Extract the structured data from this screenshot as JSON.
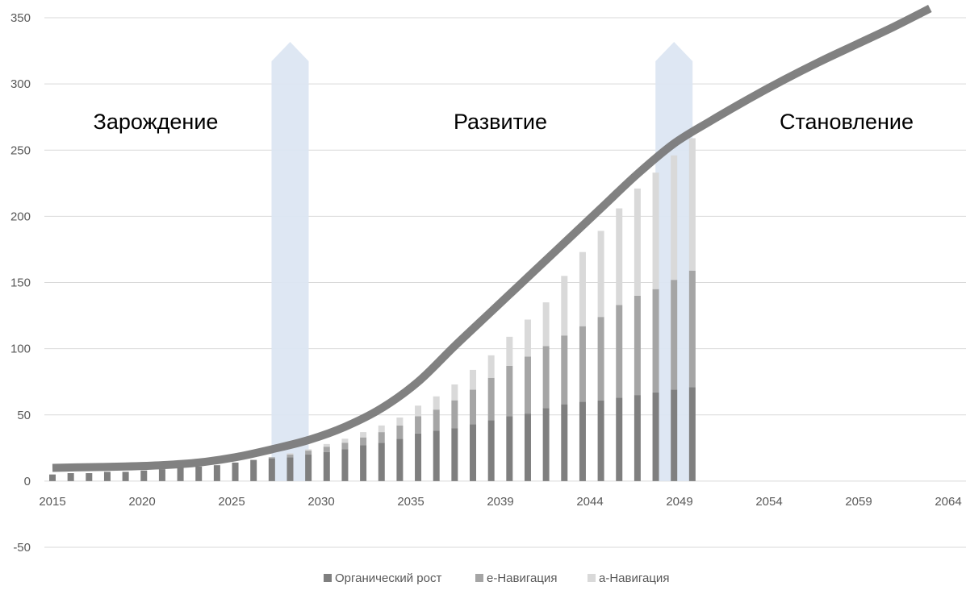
{
  "chart_data": {
    "type": "bar",
    "stacked": true,
    "x_tick_labels": [
      "2015",
      "2020",
      "2025",
      "2030",
      "2035",
      "2039",
      "2044",
      "2049",
      "2054",
      "2059",
      "2064"
    ],
    "y_ticks": [
      350,
      300,
      250,
      200,
      150,
      100,
      50,
      0,
      -50
    ],
    "ylim": [
      -50,
      350
    ],
    "xlim": [
      2015,
      2064
    ],
    "grid": true,
    "legend_position": "bottom",
    "phase_labels": [
      "Зарождение",
      "Развитие",
      "Становление"
    ],
    "series": [
      {
        "name": "Органический рост",
        "color": "#7f7f7f",
        "years": [
          2015,
          2016,
          2017,
          2018,
          2019,
          2020,
          2021,
          2022,
          2023,
          2024,
          2025,
          2026,
          2027,
          2028,
          2029,
          2030,
          2031,
          2032,
          2033,
          2034,
          2035,
          2036,
          2037,
          2038,
          2039,
          2040,
          2041,
          2042,
          2043,
          2044,
          2045,
          2046,
          2047,
          2048,
          2049,
          2050
        ],
        "values": [
          5,
          6,
          6,
          7,
          7,
          8,
          9,
          10,
          11,
          12,
          14,
          16,
          17,
          18,
          20,
          22,
          24,
          27,
          29,
          32,
          36,
          38,
          40,
          43,
          46,
          49,
          51,
          55,
          58,
          60,
          61,
          63,
          65,
          67,
          69,
          71
        ]
      },
      {
        "name": "e-Навигация",
        "color": "#a5a5a5",
        "years": [
          2015,
          2016,
          2017,
          2018,
          2019,
          2020,
          2021,
          2022,
          2023,
          2024,
          2025,
          2026,
          2027,
          2028,
          2029,
          2030,
          2031,
          2032,
          2033,
          2034,
          2035,
          2036,
          2037,
          2038,
          2039,
          2040,
          2041,
          2042,
          2043,
          2044,
          2045,
          2046,
          2047,
          2048,
          2049,
          2050
        ],
        "values": [
          0,
          0,
          0,
          0,
          0,
          0,
          0,
          0,
          0,
          0,
          0,
          0,
          1,
          2,
          3,
          4,
          5,
          6,
          8,
          10,
          13,
          16,
          21,
          26,
          32,
          38,
          43,
          47,
          52,
          57,
          63,
          70,
          75,
          78,
          83,
          88
        ]
      },
      {
        "name": "a-Навигация",
        "color": "#d9d9d9",
        "years": [
          2015,
          2016,
          2017,
          2018,
          2019,
          2020,
          2021,
          2022,
          2023,
          2024,
          2025,
          2026,
          2027,
          2028,
          2029,
          2030,
          2031,
          2032,
          2033,
          2034,
          2035,
          2036,
          2037,
          2038,
          2039,
          2040,
          2041,
          2042,
          2043,
          2044,
          2045,
          2046,
          2047,
          2048,
          2049,
          2050
        ],
        "values": [
          0,
          0,
          0,
          0,
          0,
          0,
          0,
          0,
          0,
          0,
          0,
          0,
          0,
          1,
          1,
          2,
          3,
          4,
          5,
          6,
          8,
          10,
          12,
          15,
          17,
          22,
          28,
          33,
          45,
          56,
          65,
          73,
          81,
          88,
          94,
          100
        ]
      }
    ],
    "trend_curve": {
      "color": "#7a7a7a",
      "x": [
        2015,
        2017,
        2019,
        2021,
        2023,
        2025,
        2027,
        2029,
        2031,
        2033,
        2035,
        2037,
        2039,
        2041,
        2043,
        2045,
        2047,
        2049,
        2051,
        2053,
        2055,
        2057,
        2059,
        2061,
        2063
      ],
      "y": [
        10,
        10.5,
        11,
        12,
        14,
        18,
        24,
        31,
        41,
        55,
        75,
        102,
        128,
        154,
        180,
        206,
        232,
        255,
        272,
        288,
        303,
        317,
        330,
        343,
        357
      ]
    },
    "highlight_arrows": [
      {
        "year": 2028,
        "color": "#dce6f2"
      },
      {
        "year": 2049,
        "color": "#dce6f2"
      }
    ]
  }
}
